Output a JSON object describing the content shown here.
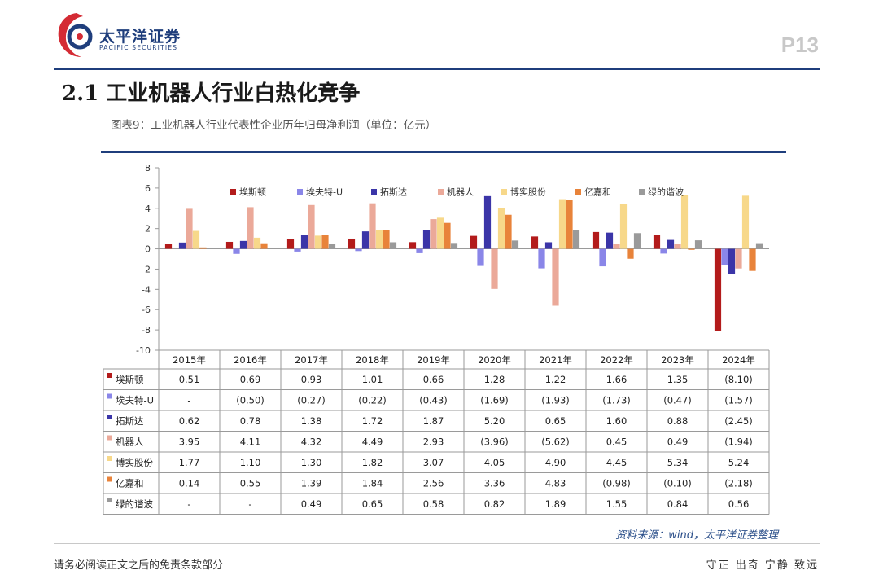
{
  "header": {
    "brand_name": "太平洋证券",
    "brand_en": "PACIFIC SECURITIES",
    "page_number": "P13",
    "title": "2.1 工业机器人行业白热化竞争",
    "figure_caption": "图表9：工业机器人行业代表性企业历年归母净利润（单位：亿元）"
  },
  "footer": {
    "source": "资料来源：wind，太平洋证券整理",
    "disclaimer": "请务必阅读正文之后的免责条款部分",
    "motto": "守正 出奇 宁静 致远"
  },
  "colors": {
    "brand": "#1f3e7c",
    "logo_red": "#d42b34"
  },
  "chart_data": {
    "type": "bar",
    "title": "工业机器人行业代表性企业历年归母净利润（单位：亿元）",
    "categories": [
      "2015年",
      "2016年",
      "2017年",
      "2018年",
      "2019年",
      "2020年",
      "2021年",
      "2022年",
      "2023年",
      "2024年"
    ],
    "ylim": [
      -10,
      8
    ],
    "yticks": [
      8,
      6,
      4,
      2,
      0,
      -2,
      -4,
      -6,
      -8,
      -10
    ],
    "legend_position": "top",
    "series": [
      {
        "name": "埃斯顿",
        "color": "#b31b1b",
        "values": [
          0.51,
          0.69,
          0.93,
          1.01,
          0.66,
          1.28,
          1.22,
          1.66,
          1.35,
          -8.1
        ],
        "labels": [
          "0.51",
          "0.69",
          "0.93",
          "1.01",
          "0.66",
          "1.28",
          "1.22",
          "1.66",
          "1.35",
          "(8.10)"
        ]
      },
      {
        "name": "埃夫特-U",
        "color": "#8a86e8",
        "values": [
          null,
          -0.5,
          -0.27,
          -0.22,
          -0.43,
          -1.69,
          -1.93,
          -1.73,
          -0.47,
          -1.57
        ],
        "labels": [
          "-",
          "(0.50)",
          "(0.27)",
          "(0.22)",
          "(0.43)",
          "(1.69)",
          "(1.93)",
          "(1.73)",
          "(0.47)",
          "(1.57)"
        ]
      },
      {
        "name": "拓斯达",
        "color": "#3b35a8",
        "values": [
          0.62,
          0.78,
          1.38,
          1.72,
          1.87,
          5.2,
          0.65,
          1.6,
          0.88,
          -2.45
        ],
        "labels": [
          "0.62",
          "0.78",
          "1.38",
          "1.72",
          "1.87",
          "5.20",
          "0.65",
          "1.60",
          "0.88",
          "(2.45)"
        ]
      },
      {
        "name": "机器人",
        "color": "#eba999",
        "values": [
          3.95,
          4.11,
          4.32,
          4.49,
          2.93,
          -3.96,
          -5.62,
          0.45,
          0.49,
          -1.94
        ],
        "labels": [
          "3.95",
          "4.11",
          "4.32",
          "4.49",
          "2.93",
          "(3.96)",
          "(5.62)",
          "0.45",
          "0.49",
          "(1.94)"
        ]
      },
      {
        "name": "博实股份",
        "color": "#f7d88a",
        "values": [
          1.77,
          1.1,
          1.3,
          1.82,
          3.07,
          4.05,
          4.9,
          4.45,
          5.34,
          5.24
        ],
        "labels": [
          "1.77",
          "1.10",
          "1.30",
          "1.82",
          "3.07",
          "4.05",
          "4.90",
          "4.45",
          "5.34",
          "5.24"
        ]
      },
      {
        "name": "亿嘉和",
        "color": "#e8833a",
        "values": [
          0.14,
          0.55,
          1.39,
          1.84,
          2.56,
          3.36,
          4.83,
          -0.98,
          -0.1,
          -2.18
        ],
        "labels": [
          "0.14",
          "0.55",
          "1.39",
          "1.84",
          "2.56",
          "3.36",
          "4.83",
          "(0.98)",
          "(0.10)",
          "(2.18)"
        ]
      },
      {
        "name": "绿的谐波",
        "color": "#9a9a9a",
        "values": [
          null,
          null,
          0.49,
          0.65,
          0.58,
          0.82,
          1.89,
          1.55,
          0.84,
          0.56
        ],
        "labels": [
          "-",
          "-",
          "0.49",
          "0.65",
          "0.58",
          "0.82",
          "1.89",
          "1.55",
          "0.84",
          "0.56"
        ]
      }
    ]
  }
}
